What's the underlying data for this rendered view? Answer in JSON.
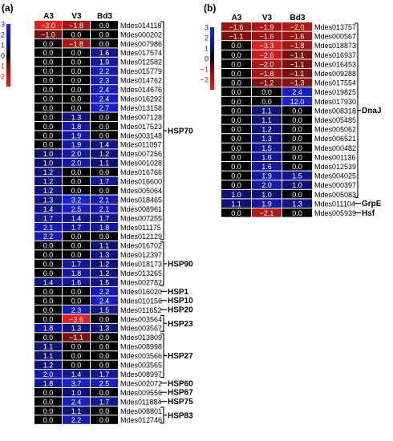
{
  "chart_data": [
    {
      "panel_label": "(a)",
      "type": "heatmap",
      "columns": [
        "A3",
        "V3",
        "Bd3"
      ],
      "color_scale": {
        "min": -3,
        "max": 3,
        "ticks": [
          "3",
          "2",
          "1",
          "0",
          "−1",
          "−2"
        ],
        "colors": {
          "negative": "#e0201a",
          "zero": "#000000",
          "positive": "#1a22d8"
        }
      },
      "rows": [
        {
          "gene": "Mdes014118",
          "values": [
            -3.0,
            -1.8,
            0.0
          ]
        },
        {
          "gene": "Mdes000202",
          "values": [
            -1.0,
            0.0,
            0.0
          ]
        },
        {
          "gene": "Mdes007986",
          "values": [
            0.0,
            -1.8,
            0.0
          ]
        },
        {
          "gene": "Mdes017574",
          "values": [
            0.0,
            0.0,
            1.6
          ]
        },
        {
          "gene": "Mdes012582",
          "values": [
            0.0,
            0.0,
            1.9
          ]
        },
        {
          "gene": "Mdes015779",
          "values": [
            0.0,
            0.0,
            2.2
          ]
        },
        {
          "gene": "Mdes014762",
          "values": [
            0.0,
            0.0,
            2.3
          ]
        },
        {
          "gene": "Mdes014676",
          "values": [
            0.0,
            0.0,
            2.4
          ]
        },
        {
          "gene": "Mdes016292",
          "values": [
            0.0,
            0.0,
            2.4
          ]
        },
        {
          "gene": "Mdes013158",
          "values": [
            0.0,
            0.0,
            2.7
          ]
        },
        {
          "gene": "Mdes007128",
          "values": [
            0.0,
            1.3,
            0.0
          ]
        },
        {
          "gene": "Mdes017523",
          "values": [
            0.0,
            1.8,
            0.0
          ]
        },
        {
          "gene": "Mdes003148",
          "values": [
            0.0,
            1.9,
            0.0
          ]
        },
        {
          "gene": "Mdes011097",
          "values": [
            0.0,
            1.9,
            1.4
          ]
        },
        {
          "gene": "Mdes007256",
          "values": [
            1.0,
            2.0,
            1.2
          ]
        },
        {
          "gene": "Mdes001028",
          "values": [
            1.0,
            2.0,
            1.1
          ]
        },
        {
          "gene": "Mdes016766",
          "values": [
            1.2,
            0.0,
            0.0
          ]
        },
        {
          "gene": "Mdes016600",
          "values": [
            1.2,
            0.0,
            1.7
          ]
        },
        {
          "gene": "Mdes005064",
          "values": [
            1.2,
            0.0,
            0.0
          ]
        },
        {
          "gene": "Mdes018465",
          "values": [
            1.3,
            3.2,
            2.1
          ]
        },
        {
          "gene": "Mdes008961",
          "values": [
            1.4,
            2.5,
            2.1
          ]
        },
        {
          "gene": "Mdes007255",
          "values": [
            1.7,
            1.4,
            1.7
          ]
        },
        {
          "gene": "Mdes011175",
          "values": [
            2.1,
            1.7,
            1.8
          ]
        },
        {
          "gene": "Mdes012129",
          "values": [
            2.2,
            0.0,
            0.0
          ]
        },
        {
          "gene": "Mdes016702",
          "values": [
            0.0,
            0.0,
            1.1
          ]
        },
        {
          "gene": "Mdes012397",
          "values": [
            0.0,
            0.0,
            1.3
          ]
        },
        {
          "gene": "Mdes018173",
          "values": [
            0.0,
            1.7,
            1.2
          ]
        },
        {
          "gene": "Mdes013265",
          "values": [
            0.0,
            1.8,
            1.2
          ]
        },
        {
          "gene": "Mdes002782",
          "values": [
            1.4,
            1.6,
            1.5
          ]
        },
        {
          "gene": "Mdes016020",
          "values": [
            0.0,
            0.0,
            2.2
          ]
        },
        {
          "gene": "Mdes010156",
          "values": [
            0.0,
            0.0,
            2.4
          ]
        },
        {
          "gene": "Mdes011652",
          "values": [
            0.0,
            2.3,
            1.5
          ]
        },
        {
          "gene": "Mdes003564",
          "values": [
            0.0,
            -3.6,
            0.0
          ]
        },
        {
          "gene": "Mdes003567",
          "values": [
            1.8,
            1.3,
            1.3
          ]
        },
        {
          "gene": "Mdes013809",
          "values": [
            0.0,
            -1.1,
            0.0
          ]
        },
        {
          "gene": "Mdes008998",
          "values": [
            1.1,
            0.0,
            0.0
          ]
        },
        {
          "gene": "Mdes003566",
          "values": [
            1.1,
            0.0,
            0.0
          ]
        },
        {
          "gene": "Mdes003565",
          "values": [
            1.2,
            0.0,
            0.0
          ]
        },
        {
          "gene": "Mdes008997",
          "values": [
            2.0,
            1.4,
            1.7
          ]
        },
        {
          "gene": "Mdes002072",
          "values": [
            1.8,
            3.7,
            2.5
          ]
        },
        {
          "gene": "Mdes009556",
          "values": [
            0.0,
            1.0,
            0.0
          ]
        },
        {
          "gene": "Mdes011884",
          "values": [
            0.0,
            2.4,
            1.7
          ]
        },
        {
          "gene": "Mdes008801",
          "values": [
            0.0,
            1.1,
            0.0
          ]
        },
        {
          "gene": "Mdes012746",
          "values": [
            0.0,
            2.2,
            0.0
          ]
        }
      ],
      "groups": [
        {
          "label": "HSP70",
          "start": 0,
          "end": 23
        },
        {
          "label": "HSP90",
          "start": 24,
          "end": 28
        },
        {
          "label": "HSP1",
          "start": 29,
          "end": 29
        },
        {
          "label": "HSP10",
          "start": 30,
          "end": 30
        },
        {
          "label": "HSP20",
          "start": 31,
          "end": 31
        },
        {
          "label": "HSP23",
          "start": 32,
          "end": 33
        },
        {
          "label": "HSP27",
          "start": 34,
          "end": 38
        },
        {
          "label": "HSP60",
          "start": 39,
          "end": 39
        },
        {
          "label": "HSP67",
          "start": 40,
          "end": 40
        },
        {
          "label": "HSP75",
          "start": 41,
          "end": 41
        },
        {
          "label": "HSP83",
          "start": 42,
          "end": 43
        }
      ]
    },
    {
      "panel_label": "(b)",
      "type": "heatmap",
      "columns": [
        "A3",
        "V3",
        "Bd3"
      ],
      "color_scale": {
        "min": -3,
        "max": 3,
        "ticks": [
          "3",
          "2",
          "1",
          "0",
          "−1",
          "−2"
        ],
        "colors": {
          "negative": "#e0201a",
          "zero": "#000000",
          "positive": "#1a22d8"
        }
      },
      "rows": [
        {
          "gene": "Mdes013757",
          "values": [
            -1.6,
            -1.9,
            -2.0
          ]
        },
        {
          "gene": "Mdes000567",
          "values": [
            -1.1,
            -1.6,
            -1.6
          ]
        },
        {
          "gene": "Mdes018873",
          "values": [
            0.0,
            -3.3,
            -1.8
          ]
        },
        {
          "gene": "Mdes016937",
          "values": [
            0.0,
            -2.6,
            -1.1
          ]
        },
        {
          "gene": "Mdes016453",
          "values": [
            0.0,
            -2.0,
            -1.1
          ]
        },
        {
          "gene": "Mdes009288",
          "values": [
            0.0,
            -1.8,
            -1.1
          ]
        },
        {
          "gene": "Mdes017554",
          "values": [
            0.0,
            -1.2,
            -1.3
          ]
        },
        {
          "gene": "Mdes019825",
          "values": [
            0.0,
            0.0,
            2.4
          ]
        },
        {
          "gene": "Mdes017930",
          "values": [
            0.0,
            0.0,
            12.0
          ]
        },
        {
          "gene": "Mdes008318",
          "values": [
            0.0,
            1.1,
            0.0
          ]
        },
        {
          "gene": "Mdes005485",
          "values": [
            0.0,
            1.1,
            0.0
          ]
        },
        {
          "gene": "Mdes005062",
          "values": [
            0.0,
            1.2,
            0.0
          ]
        },
        {
          "gene": "Mdes006521",
          "values": [
            0.0,
            1.3,
            0.0
          ]
        },
        {
          "gene": "Mdes000482",
          "values": [
            0.0,
            1.5,
            0.0
          ]
        },
        {
          "gene": "Mdes001136",
          "values": [
            0.0,
            1.6,
            0.0
          ]
        },
        {
          "gene": "Mdes012539",
          "values": [
            0.0,
            1.6,
            0.0
          ]
        },
        {
          "gene": "Mdes004025",
          "values": [
            0.0,
            1.9,
            1.5
          ]
        },
        {
          "gene": "Mdes000397",
          "values": [
            0.0,
            2.0,
            1.0
          ]
        },
        {
          "gene": "Mdes005083",
          "values": [
            1.0,
            1.0,
            0.0
          ]
        },
        {
          "gene": "Mdes011104",
          "values": [
            1.1,
            1.9,
            1.3
          ]
        },
        {
          "gene": "Mdes005939",
          "values": [
            0.0,
            -2.1,
            0.0
          ]
        }
      ],
      "groups": [
        {
          "label": "DnaJ",
          "start": 0,
          "end": 18
        },
        {
          "label": "GrpE",
          "start": 19,
          "end": 19
        },
        {
          "label": "Hsf",
          "start": 20,
          "end": 20
        }
      ]
    }
  ]
}
